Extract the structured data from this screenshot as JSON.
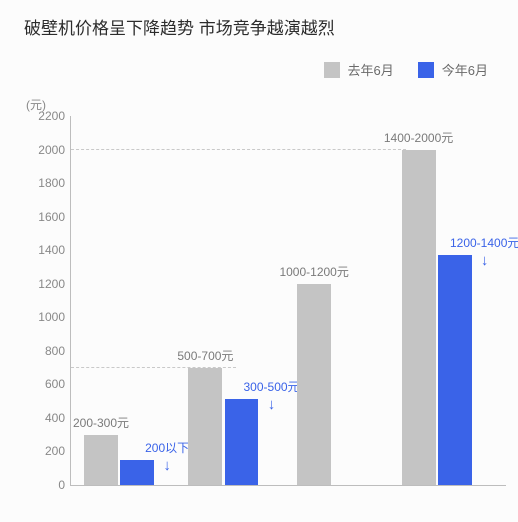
{
  "title": {
    "text": "破壁机价格呈下降趋势 市场竞争越演越烈",
    "fontsize": 17
  },
  "legend": {
    "items": [
      {
        "label": "去年6月",
        "color": "#c4c4c4"
      },
      {
        "label": "今年6月",
        "color": "#3a63e8"
      }
    ]
  },
  "chart": {
    "type": "bar",
    "y_unit": "(元)",
    "ylim": [
      0,
      2200
    ],
    "ytick_step": 200,
    "tick_color": "#888888",
    "tick_fontsize": 12,
    "background_color": "#fcfcfc",
    "axis_color": "#bdbdbd",
    "grid_color": "#c9c9c9",
    "gridlines_at": [
      700,
      2000
    ],
    "gridline_widths_pct": [
      38,
      77
    ],
    "groups": [
      {
        "last": {
          "label": "200-300元",
          "value": 300,
          "color": "#c4c4c4",
          "label_color": "#7a7a7a"
        },
        "this": {
          "label": "200以下",
          "value": 150,
          "color": "#3a63e8",
          "label_color": "#3a63e8",
          "arrow": "↓"
        }
      },
      {
        "last": {
          "label": "500-700元",
          "value": 700,
          "color": "#c4c4c4",
          "label_color": "#7a7a7a"
        },
        "this": {
          "label": "300-500元",
          "value": 510,
          "color": "#3a63e8",
          "label_color": "#3a63e8",
          "arrow": "↓"
        }
      },
      {
        "last": {
          "label": "1000-1200元",
          "value": 1200,
          "color": "#c4c4c4",
          "label_color": "#7a7a7a"
        },
        "this": {
          "label": "",
          "value": 0,
          "color": "#3a63e8",
          "label_color": "#3a63e8",
          "arrow": ""
        }
      },
      {
        "last": {
          "label": "1400-2000元",
          "value": 2000,
          "color": "#c4c4c4",
          "label_color": "#7a7a7a"
        },
        "this": {
          "label": "1200-1400元",
          "value": 1370,
          "color": "#3a63e8",
          "label_color": "#3a63e8",
          "arrow": "↓"
        }
      }
    ],
    "bar_width_pct": 7.8,
    "group_gap_pct": 4.0,
    "group_start_pct": [
      3,
      27,
      52,
      76
    ]
  }
}
